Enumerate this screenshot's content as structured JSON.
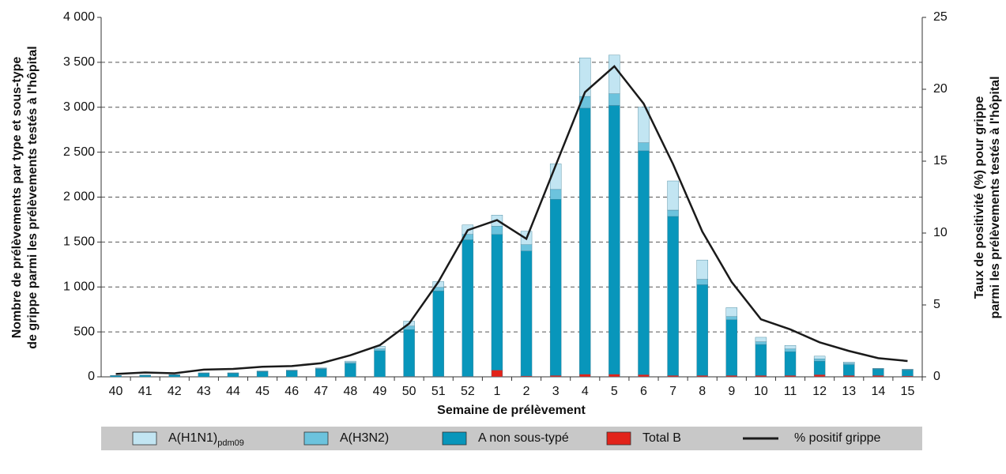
{
  "chart_data": {
    "type": "bar",
    "x_label": "Semaine de prélèvement",
    "y_label": [
      "Nombre de prélèvements par type et sous-type",
      "de grippe parmi les prélèvements testés à l'hôpital"
    ],
    "y2_label": [
      "Taux de positivité (%) pour grippe",
      "parmi les prélèvements testés à l'hôpital"
    ],
    "categories": [
      "40",
      "41",
      "42",
      "43",
      "44",
      "45",
      "46",
      "47",
      "48",
      "49",
      "50",
      "51",
      "52",
      "1",
      "2",
      "3",
      "4",
      "5",
      "6",
      "7",
      "8",
      "9",
      "10",
      "11",
      "12",
      "13",
      "14",
      "15"
    ],
    "series": [
      {
        "name": "Total B",
        "color": "#e2231a",
        "type": "bar",
        "values": [
          0,
          0,
          0,
          0,
          0,
          0,
          0,
          0,
          0,
          0,
          5,
          5,
          5,
          75,
          10,
          15,
          30,
          30,
          25,
          15,
          15,
          15,
          15,
          15,
          25,
          15,
          15,
          10
        ]
      },
      {
        "name": "A non sous-typé",
        "color": "#0896bb",
        "type": "bar",
        "values": [
          12,
          17,
          20,
          40,
          40,
          58,
          67,
          88,
          150,
          290,
          520,
          950,
          1520,
          1510,
          1390,
          1960,
          2960,
          2990,
          2490,
          1770,
          1010,
          620,
          345,
          265,
          150,
          120,
          70,
          65
        ]
      },
      {
        "name": "A(H3N2)",
        "color": "#6cc3dd",
        "type": "bar",
        "values": [
          1,
          1,
          2,
          2,
          2,
          3,
          3,
          5,
          10,
          20,
          40,
          40,
          60,
          90,
          70,
          110,
          130,
          130,
          90,
          70,
          60,
          35,
          30,
          30,
          25,
          15,
          5,
          5
        ]
      },
      {
        "name": "A(H1N1)",
        "subscript": "pdm09",
        "color": "#c2e5f2",
        "type": "bar",
        "values": [
          2,
          2,
          3,
          3,
          3,
          4,
          5,
          7,
          15,
          30,
          55,
          65,
          105,
          125,
          150,
          285,
          430,
          430,
          395,
          325,
          215,
          100,
          50,
          40,
          30,
          15,
          5,
          5
        ]
      },
      {
        "name": "% positif grippe",
        "color": "#1a1a1a",
        "type": "line",
        "axis": "y2",
        "values": [
          0.2,
          0.3,
          0.25,
          0.5,
          0.55,
          0.7,
          0.75,
          0.95,
          1.5,
          2.2,
          3.7,
          6.6,
          10.2,
          10.9,
          9.6,
          14.7,
          19.8,
          21.6,
          19.0,
          14.8,
          10.1,
          6.6,
          4.0,
          3.3,
          2.4,
          1.8,
          1.3,
          1.1
        ]
      }
    ],
    "ylim": [
      0,
      4000
    ],
    "yticks": [
      0,
      500,
      {
        "value": 1000,
        "label": "1 000"
      },
      {
        "value": 1500,
        "label": "1 500"
      },
      {
        "value": 2000,
        "label": "2 000"
      },
      {
        "value": 2500,
        "label": "2 500"
      },
      {
        "value": 3000,
        "label": "3 000"
      },
      {
        "value": 3500,
        "label": "3 500"
      },
      {
        "value": 4000,
        "label": "4 000"
      }
    ],
    "y2lim": [
      0,
      25
    ],
    "y2ticks": [
      0,
      5,
      10,
      15,
      20,
      25
    ],
    "grid": true
  }
}
